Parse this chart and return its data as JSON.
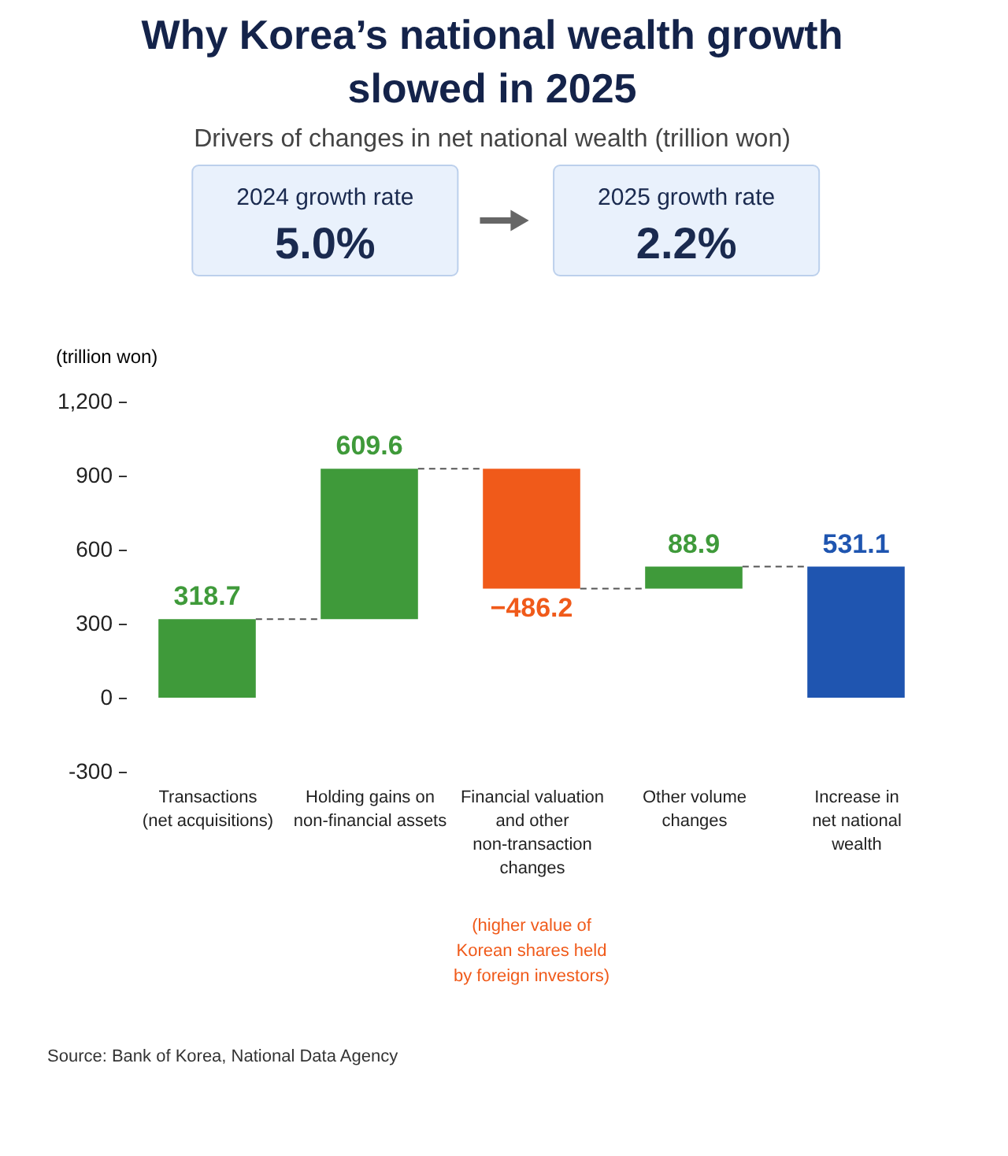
{
  "chart_data": {
    "type": "bar",
    "title": "Why Korea’s national wealth growth\nslowed in 2025",
    "subtitle": "Drivers of changes in net national wealth (trillion won)",
    "ylabel": "(trillion won)",
    "categories": [
      "Transactions\n(net acquisitions)",
      "Holding gains on\nnon-financial assets",
      "Financial valuation\nand other\nnon-transaction\nchanges",
      "Other volume\nchanges",
      "Increase in\nnet national\nwealth"
    ],
    "values": [
      318.7,
      609.6,
      -486.2,
      88.9,
      531.1
    ],
    "base": [
      0,
      318.7,
      928.3,
      442.1,
      0
    ],
    "colors": [
      "#3f9a3a",
      "#3f9a3a",
      "#f05a1a",
      "#3f9a3a",
      "#1f55b0"
    ],
    "value_labels": [
      "318.7",
      "609.6",
      "−486.2",
      "88.9",
      "531.1"
    ],
    "ylim": [
      -300,
      1200
    ],
    "yticks": [
      -300,
      0,
      300,
      600,
      900,
      {
        "value": 1200,
        "label": "1,200"
      }
    ],
    "grid": false,
    "annotations": [
      "2024 growth rate",
      "5.0%",
      "2025 growth rate",
      "2.2%",
      "(higher value of\nKorean shares held\nby foreign investors)",
      "Source: Bank of Korea, National Data Agency"
    ]
  }
}
